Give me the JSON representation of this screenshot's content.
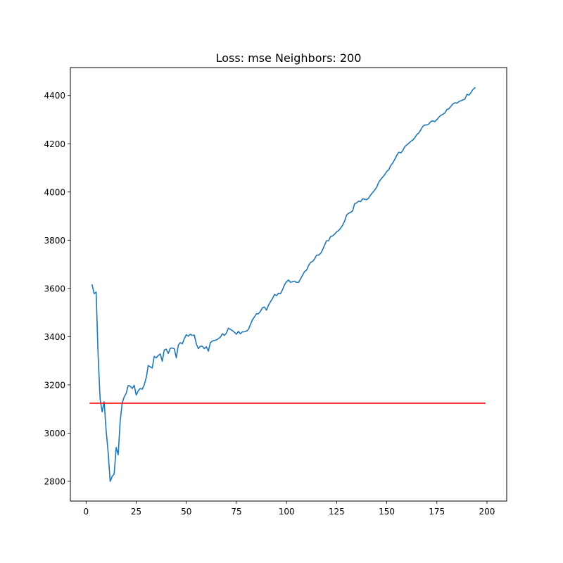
{
  "chart_data": {
    "type": "line",
    "title": "Loss: mse Neighbors: 200",
    "xlabel": "",
    "ylabel": "",
    "xlim": [
      -7.85,
      209.85
    ],
    "ylim": [
      2718,
      4516
    ],
    "grid": false,
    "x_ticks": [
      0,
      25,
      50,
      75,
      100,
      125,
      150,
      175,
      200
    ],
    "y_ticks": [
      2800,
      3000,
      3200,
      3400,
      3600,
      3800,
      4000,
      4200,
      4400
    ],
    "series": [
      {
        "color": "#1f77b4",
        "points": [
          [
            3,
            3615
          ],
          [
            4,
            3578
          ],
          [
            5,
            3585
          ],
          [
            6,
            3320
          ],
          [
            7,
            3140
          ],
          [
            8,
            3088
          ],
          [
            9,
            3130
          ],
          [
            10,
            3010
          ],
          [
            11,
            2920
          ],
          [
            12,
            2800
          ],
          [
            13,
            2820
          ],
          [
            14,
            2830
          ],
          [
            15,
            2940
          ],
          [
            16,
            2910
          ],
          [
            17,
            3050
          ],
          [
            18,
            3125
          ],
          [
            19,
            3150
          ],
          [
            20,
            3165
          ],
          [
            21,
            3197
          ],
          [
            22,
            3195
          ],
          [
            23,
            3185
          ],
          [
            24,
            3198
          ],
          [
            25,
            3158
          ],
          [
            26,
            3175
          ],
          [
            27,
            3185
          ],
          [
            28,
            3182
          ],
          [
            29,
            3200
          ],
          [
            30,
            3230
          ],
          [
            31,
            3280
          ],
          [
            32,
            3275
          ],
          [
            33,
            3270
          ],
          [
            34,
            3318
          ],
          [
            35,
            3312
          ],
          [
            36,
            3322
          ],
          [
            37,
            3328
          ],
          [
            38,
            3298
          ],
          [
            39,
            3345
          ],
          [
            40,
            3348
          ],
          [
            41,
            3330
          ],
          [
            42,
            3352
          ],
          [
            43,
            3353
          ],
          [
            44,
            3350
          ],
          [
            45,
            3312
          ],
          [
            46,
            3365
          ],
          [
            47,
            3375
          ],
          [
            48,
            3370
          ],
          [
            49,
            3392
          ],
          [
            50,
            3408
          ],
          [
            51,
            3402
          ],
          [
            52,
            3410
          ],
          [
            53,
            3405
          ],
          [
            54,
            3406
          ],
          [
            55,
            3370
          ],
          [
            56,
            3350
          ],
          [
            57,
            3360
          ],
          [
            58,
            3360
          ],
          [
            59,
            3350
          ],
          [
            60,
            3358
          ],
          [
            61,
            3340
          ],
          [
            62,
            3375
          ],
          [
            63,
            3382
          ],
          [
            64,
            3384
          ],
          [
            65,
            3386
          ],
          [
            66,
            3392
          ],
          [
            67,
            3398
          ],
          [
            68,
            3412
          ],
          [
            69,
            3405
          ],
          [
            70,
            3415
          ],
          [
            71,
            3435
          ],
          [
            72,
            3430
          ],
          [
            73,
            3425
          ],
          [
            74,
            3418
          ],
          [
            75,
            3410
          ],
          [
            76,
            3422
          ],
          [
            77,
            3412
          ],
          [
            78,
            3420
          ],
          [
            79,
            3420
          ],
          [
            80,
            3423
          ],
          [
            81,
            3430
          ],
          [
            82,
            3450
          ],
          [
            83,
            3470
          ],
          [
            84,
            3482
          ],
          [
            85,
            3495
          ],
          [
            86,
            3495
          ],
          [
            87,
            3505
          ],
          [
            88,
            3520
          ],
          [
            89,
            3523
          ],
          [
            90,
            3510
          ],
          [
            91,
            3530
          ],
          [
            92,
            3545
          ],
          [
            93,
            3558
          ],
          [
            94,
            3575
          ],
          [
            95,
            3570
          ],
          [
            96,
            3580
          ],
          [
            97,
            3578
          ],
          [
            98,
            3595
          ],
          [
            99,
            3615
          ],
          [
            100,
            3628
          ],
          [
            101,
            3635
          ],
          [
            102,
            3625
          ],
          [
            103,
            3628
          ],
          [
            104,
            3630
          ],
          [
            105,
            3625
          ],
          [
            106,
            3625
          ],
          [
            107,
            3640
          ],
          [
            108,
            3655
          ],
          [
            109,
            3670
          ],
          [
            110,
            3676
          ],
          [
            111,
            3695
          ],
          [
            112,
            3708
          ],
          [
            113,
            3712
          ],
          [
            114,
            3722
          ],
          [
            115,
            3738
          ],
          [
            116,
            3738
          ],
          [
            117,
            3745
          ],
          [
            118,
            3760
          ],
          [
            119,
            3780
          ],
          [
            120,
            3798
          ],
          [
            121,
            3798
          ],
          [
            122,
            3815
          ],
          [
            123,
            3818
          ],
          [
            124,
            3825
          ],
          [
            125,
            3835
          ],
          [
            126,
            3840
          ],
          [
            127,
            3850
          ],
          [
            128,
            3862
          ],
          [
            129,
            3880
          ],
          [
            130,
            3905
          ],
          [
            131,
            3912
          ],
          [
            132,
            3915
          ],
          [
            133,
            3922
          ],
          [
            134,
            3952
          ],
          [
            135,
            3955
          ],
          [
            136,
            3962
          ],
          [
            137,
            3960
          ],
          [
            138,
            3972
          ],
          [
            139,
            3970
          ],
          [
            140,
            3968
          ],
          [
            141,
            3975
          ],
          [
            142,
            3988
          ],
          [
            143,
            3998
          ],
          [
            144,
            4008
          ],
          [
            145,
            4020
          ],
          [
            146,
            4040
          ],
          [
            147,
            4052
          ],
          [
            148,
            4062
          ],
          [
            149,
            4072
          ],
          [
            150,
            4085
          ],
          [
            151,
            4092
          ],
          [
            152,
            4110
          ],
          [
            153,
            4120
          ],
          [
            154,
            4135
          ],
          [
            155,
            4152
          ],
          [
            156,
            4165
          ],
          [
            157,
            4162
          ],
          [
            158,
            4172
          ],
          [
            159,
            4188
          ],
          [
            160,
            4195
          ],
          [
            161,
            4202
          ],
          [
            162,
            4210
          ],
          [
            163,
            4215
          ],
          [
            164,
            4225
          ],
          [
            165,
            4238
          ],
          [
            166,
            4245
          ],
          [
            167,
            4258
          ],
          [
            168,
            4272
          ],
          [
            169,
            4278
          ],
          [
            170,
            4278
          ],
          [
            171,
            4282
          ],
          [
            172,
            4292
          ],
          [
            173,
            4295
          ],
          [
            174,
            4292
          ],
          [
            175,
            4300
          ],
          [
            176,
            4310
          ],
          [
            177,
            4318
          ],
          [
            178,
            4322
          ],
          [
            179,
            4328
          ],
          [
            180,
            4342
          ],
          [
            181,
            4345
          ],
          [
            182,
            4355
          ],
          [
            183,
            4365
          ],
          [
            184,
            4370
          ],
          [
            185,
            4368
          ],
          [
            186,
            4375
          ],
          [
            187,
            4378
          ],
          [
            188,
            4382
          ],
          [
            189,
            4385
          ],
          [
            190,
            4405
          ],
          [
            191,
            4402
          ],
          [
            192,
            4412
          ],
          [
            193,
            4425
          ],
          [
            194,
            4432
          ]
        ]
      },
      {
        "color": "#ff0000",
        "points": [
          [
            2,
            3124
          ],
          [
            199,
            3124
          ]
        ]
      }
    ]
  }
}
